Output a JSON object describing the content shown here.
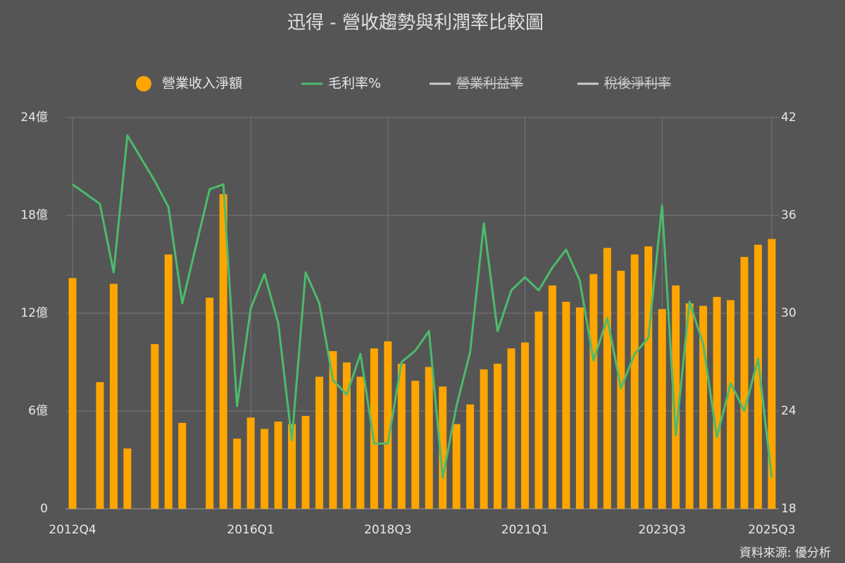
{
  "chart_data": {
    "type": "bar_line",
    "title": "迅得 - 營收趨勢與利潤率比較圖",
    "source": "資料來源: 優分析",
    "categories": [
      "2012Q4",
      null,
      null,
      null,
      null,
      null,
      null,
      null,
      null,
      null,
      null,
      null,
      null,
      "2016Q1",
      null,
      null,
      null,
      null,
      null,
      null,
      null,
      null,
      null,
      "2018Q3",
      null,
      null,
      null,
      null,
      null,
      null,
      null,
      null,
      null,
      "2021Q1",
      null,
      null,
      null,
      null,
      null,
      null,
      null,
      null,
      null,
      "2023Q3",
      null,
      null,
      null,
      null,
      null,
      null,
      null,
      "2025Q3"
    ],
    "series": [
      {
        "name": "營業收入淨額",
        "color": "#ffa500",
        "axis": "y",
        "values": [
          14.15,
          null,
          7.77,
          13.8,
          3.7,
          null,
          10.1,
          15.6,
          5.27,
          null,
          12.95,
          19.3,
          4.3,
          5.6,
          4.9,
          5.35,
          5.2,
          5.7,
          8.1,
          9.67,
          8.98,
          8.1,
          9.84,
          10.27,
          8.9,
          7.85,
          8.7,
          7.5,
          5.2,
          6.4,
          8.55,
          8.9,
          9.84,
          10.2,
          12.1,
          13.7,
          12.7,
          12.35,
          14.4,
          16.0,
          14.6,
          15.6,
          16.1,
          12.25,
          13.7,
          12.6,
          12.45,
          13.0,
          12.8,
          15.45,
          16.2,
          16.55
        ]
      },
      {
        "name": "毛利率%",
        "color": "#4cbb6c",
        "axis": "y2",
        "values": [
          37.9,
          37.3,
          36.7,
          32.5,
          40.9,
          39.5,
          38.1,
          36.5,
          30.6,
          34.1,
          37.6,
          37.9,
          24.3,
          30.3,
          32.4,
          29.4,
          22.2,
          32.5,
          30.6,
          25.9,
          25.0,
          27.5,
          22.0,
          22.0,
          27.0,
          27.7,
          28.9,
          19.9,
          24.3,
          27.6,
          35.5,
          28.9,
          31.4,
          32.2,
          31.4,
          32.8,
          33.9,
          32.0,
          27.1,
          29.7,
          25.4,
          27.5,
          28.5,
          36.6,
          22.5,
          30.7,
          28.1,
          22.4,
          25.7,
          24.0,
          27.2,
          19.9
        ]
      },
      {
        "name": "營業利益率",
        "color": "#cccccc",
        "hidden": true
      },
      {
        "name": "稅後淨利率",
        "color": "#cccccc",
        "hidden": true
      }
    ],
    "ylim": [
      0,
      24
    ],
    "yticks": [
      {
        "value": 0,
        "label": "0"
      },
      {
        "value": 6,
        "label": "6億"
      },
      {
        "value": 12,
        "label": "12億"
      },
      {
        "value": 18,
        "label": "18億"
      },
      {
        "value": 24,
        "label": "24億"
      }
    ],
    "y2lim": [
      18,
      42
    ],
    "y2ticks": [
      18,
      24,
      30,
      36,
      42
    ],
    "grid": true
  }
}
